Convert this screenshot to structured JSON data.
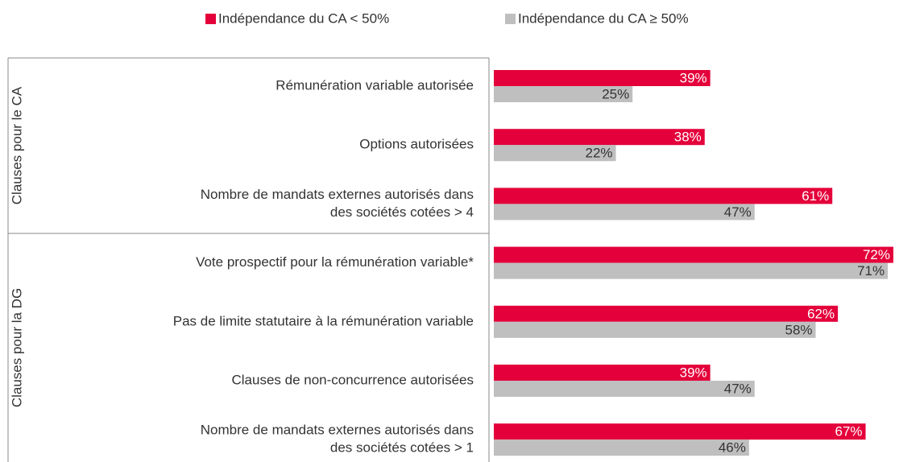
{
  "chart_data": {
    "type": "hbar",
    "groups": [
      {
        "name": "Clauses pour le CA",
        "categories": [
          0,
          1,
          2
        ]
      },
      {
        "name": "Clauses pour la DG",
        "categories": [
          3,
          4,
          5,
          6
        ]
      }
    ],
    "categories": [
      [
        "Rémunération variable autorisée"
      ],
      [
        "Options autorisées"
      ],
      [
        "Nombre de mandats externes autorisés dans",
        "des sociétés cotées > 4"
      ],
      [
        "Vote prospectif pour la rémunération variable*"
      ],
      [
        "Pas de limite statutaire à la rémunération variable"
      ],
      [
        "Clauses de non-concurrence autorisées"
      ],
      [
        "Nombre de mandats externes autorisés dans",
        "des sociétés cotées > 1"
      ]
    ],
    "series": [
      {
        "name": "Indépendance du CA < 50%",
        "color": "#e4003a",
        "values": [
          39,
          38,
          61,
          72,
          62,
          39,
          67
        ],
        "value_labels": [
          "39%",
          "38%",
          "61%",
          "72%",
          "62%",
          "39%",
          "67%"
        ]
      },
      {
        "name": "Indépendance du CA ≥ 50%",
        "color": "#bfbfbf",
        "values": [
          25,
          22,
          47,
          71,
          58,
          47,
          46
        ],
        "value_labels": [
          "25%",
          "22%",
          "47%",
          "71%",
          "58%",
          "47%",
          "46%"
        ]
      }
    ],
    "xlim": [
      0,
      72
    ],
    "legend": "top"
  }
}
